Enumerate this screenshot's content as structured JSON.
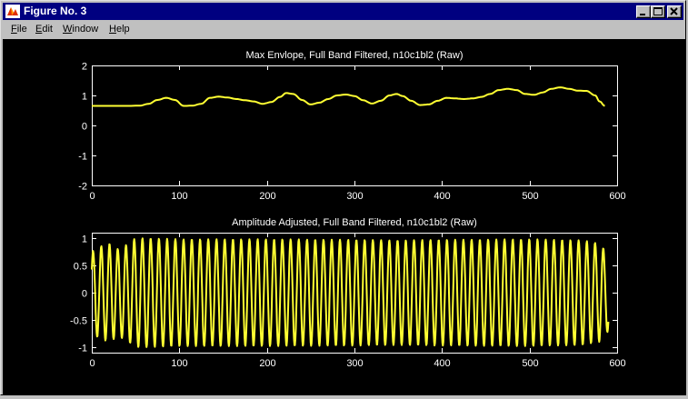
{
  "window": {
    "title": "Figure No. 3",
    "buttons": {
      "minimize": "minimize",
      "maximize": "maximize",
      "close": "close"
    }
  },
  "menu": [
    {
      "label": "File",
      "accel": "F",
      "rest": "ile"
    },
    {
      "label": "Edit",
      "accel": "E",
      "rest": "dit"
    },
    {
      "label": "Window",
      "accel": "W",
      "rest": "indow"
    },
    {
      "label": "Help",
      "accel": "H",
      "rest": "elp"
    }
  ],
  "colors": {
    "trace": "#ffff33",
    "axes": "#ffffff",
    "figure_bg": "#000000",
    "titlebar": "#000080"
  },
  "chart_data": [
    {
      "type": "line",
      "title": "Max Envlope, Full Band Filtered, n10c1bl2 (Raw)",
      "xlabel": "",
      "ylabel": "",
      "xlim": [
        0,
        600
      ],
      "ylim": [
        -2,
        2
      ],
      "xticks": [
        0,
        100,
        200,
        300,
        400,
        500,
        600
      ],
      "yticks": [
        2,
        1,
        0,
        -1,
        -2
      ],
      "grid": false,
      "series": [
        {
          "x": [
            0,
            20,
            40,
            55,
            65,
            75,
            85,
            95,
            105,
            115,
            125,
            135,
            145,
            155,
            165,
            175,
            185,
            195,
            205,
            215,
            222,
            230,
            240,
            250,
            260,
            270,
            280,
            290,
            300,
            310,
            320,
            330,
            340,
            348,
            355,
            365,
            375,
            385,
            395,
            405,
            415,
            425,
            435,
            445,
            455,
            465,
            475,
            485,
            495,
            505,
            515,
            525,
            535,
            545,
            555,
            565,
            575,
            580,
            586
          ],
          "y": [
            0.65,
            0.65,
            0.65,
            0.66,
            0.72,
            0.85,
            0.92,
            0.85,
            0.65,
            0.66,
            0.72,
            0.92,
            0.96,
            0.93,
            0.88,
            0.84,
            0.8,
            0.72,
            0.78,
            0.95,
            1.08,
            1.05,
            0.85,
            0.7,
            0.76,
            0.88,
            1.0,
            1.03,
            0.98,
            0.84,
            0.73,
            0.82,
            1.0,
            1.05,
            0.98,
            0.82,
            0.68,
            0.7,
            0.82,
            0.92,
            0.9,
            0.88,
            0.9,
            0.95,
            1.05,
            1.18,
            1.22,
            1.18,
            1.05,
            1.02,
            1.1,
            1.22,
            1.27,
            1.22,
            1.16,
            1.15,
            1.0,
            0.8,
            0.65
          ]
        }
      ]
    },
    {
      "type": "line",
      "title": "Amplitude Adjusted, Full Band Filtered, n10c1bl2 (Raw)",
      "xlabel": "",
      "ylabel": "",
      "xlim": [
        0,
        600
      ],
      "ylim": [
        -1.1,
        1.1
      ],
      "xticks": [
        0,
        100,
        200,
        300,
        400,
        500,
        600
      ],
      "yticks": [
        1,
        0.5,
        0,
        -0.5,
        -1
      ],
      "grid": false,
      "series": [
        {
          "waveform": "oscillation",
          "samples": 590,
          "period": 9.4,
          "amplitude_profile": {
            "x": [
              0,
              10,
              20,
              30,
              40,
              50,
              60,
              100,
              200,
              300,
              350,
              400,
              500,
              560,
              580,
              590
            ],
            "y": [
              0.75,
              0.85,
              0.9,
              0.8,
              0.88,
              1.0,
              1.0,
              0.98,
              0.98,
              0.97,
              0.96,
              0.97,
              0.98,
              0.96,
              0.9,
              0.7
            ]
          }
        }
      ]
    }
  ]
}
